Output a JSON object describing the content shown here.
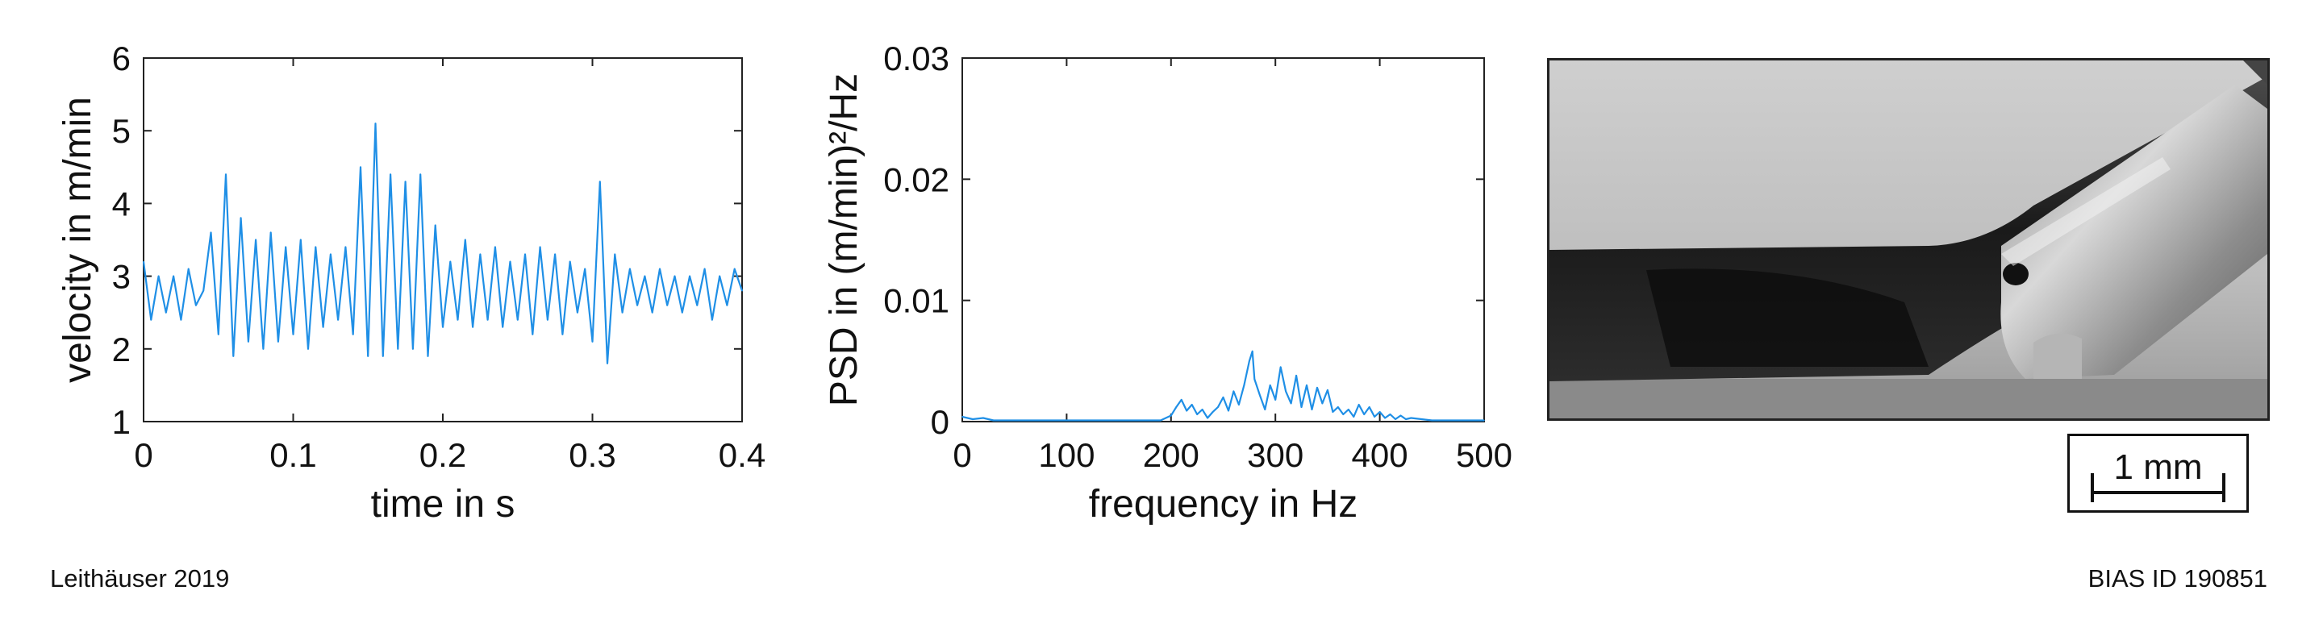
{
  "chart_data": [
    {
      "type": "line",
      "xlabel": "time in s",
      "ylabel": "velocity in m/min",
      "xlim": [
        0,
        0.4
      ],
      "ylim": [
        1,
        6
      ],
      "xticks": [
        "0",
        "0.1",
        "0.2",
        "0.3",
        "0.4"
      ],
      "yticks": [
        "1",
        "2",
        "3",
        "4",
        "5",
        "6"
      ],
      "grid": false,
      "series": [
        {
          "color": "#1f8fe6",
          "x": [
            0,
            0.005,
            0.01,
            0.015,
            0.02,
            0.025,
            0.03,
            0.035,
            0.04,
            0.045,
            0.05,
            0.055,
            0.06,
            0.065,
            0.07,
            0.075,
            0.08,
            0.085,
            0.09,
            0.095,
            0.1,
            0.105,
            0.11,
            0.115,
            0.12,
            0.125,
            0.13,
            0.135,
            0.14,
            0.145,
            0.15,
            0.155,
            0.16,
            0.165,
            0.17,
            0.175,
            0.18,
            0.185,
            0.19,
            0.195,
            0.2,
            0.205,
            0.21,
            0.215,
            0.22,
            0.225,
            0.23,
            0.235,
            0.24,
            0.245,
            0.25,
            0.255,
            0.26,
            0.265,
            0.27,
            0.275,
            0.28,
            0.285,
            0.29,
            0.295,
            0.3,
            0.305,
            0.31,
            0.315,
            0.32,
            0.325,
            0.33,
            0.335,
            0.34,
            0.345,
            0.35,
            0.355,
            0.36,
            0.365,
            0.37,
            0.375,
            0.38,
            0.385,
            0.39,
            0.395,
            0.4
          ],
          "y": [
            3.2,
            2.4,
            3.0,
            2.5,
            3.0,
            2.4,
            3.1,
            2.6,
            2.8,
            3.6,
            2.2,
            4.4,
            1.9,
            3.8,
            2.1,
            3.5,
            2.0,
            3.6,
            2.1,
            3.4,
            2.2,
            3.5,
            2.0,
            3.4,
            2.3,
            3.3,
            2.4,
            3.4,
            2.2,
            4.5,
            1.9,
            5.1,
            1.9,
            4.4,
            2.0,
            4.3,
            2.0,
            4.4,
            1.9,
            3.7,
            2.3,
            3.2,
            2.4,
            3.5,
            2.3,
            3.3,
            2.4,
            3.4,
            2.3,
            3.2,
            2.4,
            3.3,
            2.2,
            3.4,
            2.4,
            3.3,
            2.2,
            3.2,
            2.5,
            3.1,
            2.1,
            4.3,
            1.8,
            3.3,
            2.5,
            3.1,
            2.6,
            3.0,
            2.5,
            3.1,
            2.6,
            3.0,
            2.5,
            3.0,
            2.6,
            3.1,
            2.4,
            3.0,
            2.6,
            3.1,
            2.8
          ]
        }
      ]
    },
    {
      "type": "line",
      "xlabel": "frequency in Hz",
      "ylabel": "PSD in (m/min)²/Hz",
      "xlim": [
        0,
        500
      ],
      "ylim": [
        0,
        0.03
      ],
      "xticks": [
        "0",
        "100",
        "200",
        "300",
        "400",
        "500"
      ],
      "yticks": [
        "0",
        "0.01",
        "0.02",
        "0.03"
      ],
      "grid": false,
      "series": [
        {
          "color": "#1f8fe6",
          "x": [
            0,
            10,
            20,
            30,
            50,
            100,
            150,
            190,
            200,
            205,
            210,
            215,
            220,
            225,
            230,
            235,
            240,
            245,
            250,
            255,
            260,
            265,
            270,
            275,
            278,
            280,
            285,
            290,
            295,
            300,
            305,
            310,
            315,
            320,
            325,
            330,
            335,
            340,
            345,
            350,
            355,
            360,
            365,
            370,
            375,
            380,
            385,
            390,
            395,
            400,
            405,
            410,
            415,
            420,
            425,
            430,
            440,
            450,
            460,
            480,
            500
          ],
          "y": [
            0.0004,
            0.0002,
            0.0003,
            0.0001,
            0.0001,
            0.0001,
            0.0001,
            0.0001,
            0.0005,
            0.0012,
            0.0018,
            0.0009,
            0.0014,
            0.0006,
            0.001,
            0.0003,
            0.0008,
            0.0012,
            0.002,
            0.0009,
            0.0025,
            0.0014,
            0.003,
            0.005,
            0.0058,
            0.0035,
            0.0022,
            0.001,
            0.003,
            0.0018,
            0.0045,
            0.0025,
            0.0015,
            0.0038,
            0.0012,
            0.003,
            0.001,
            0.0028,
            0.0015,
            0.0026,
            0.0008,
            0.0012,
            0.0006,
            0.001,
            0.0004,
            0.0014,
            0.0006,
            0.0012,
            0.0004,
            0.0008,
            0.0003,
            0.0006,
            0.0002,
            0.0005,
            0.0002,
            0.0003,
            0.0002,
            0.0001,
            0.0001,
            0.0001,
            0.0001
          ]
        }
      ]
    }
  ],
  "scale_bar": {
    "label": "1 mm"
  },
  "credits": {
    "left": "Leithäuser 2019",
    "right": "BIAS ID 190851"
  }
}
